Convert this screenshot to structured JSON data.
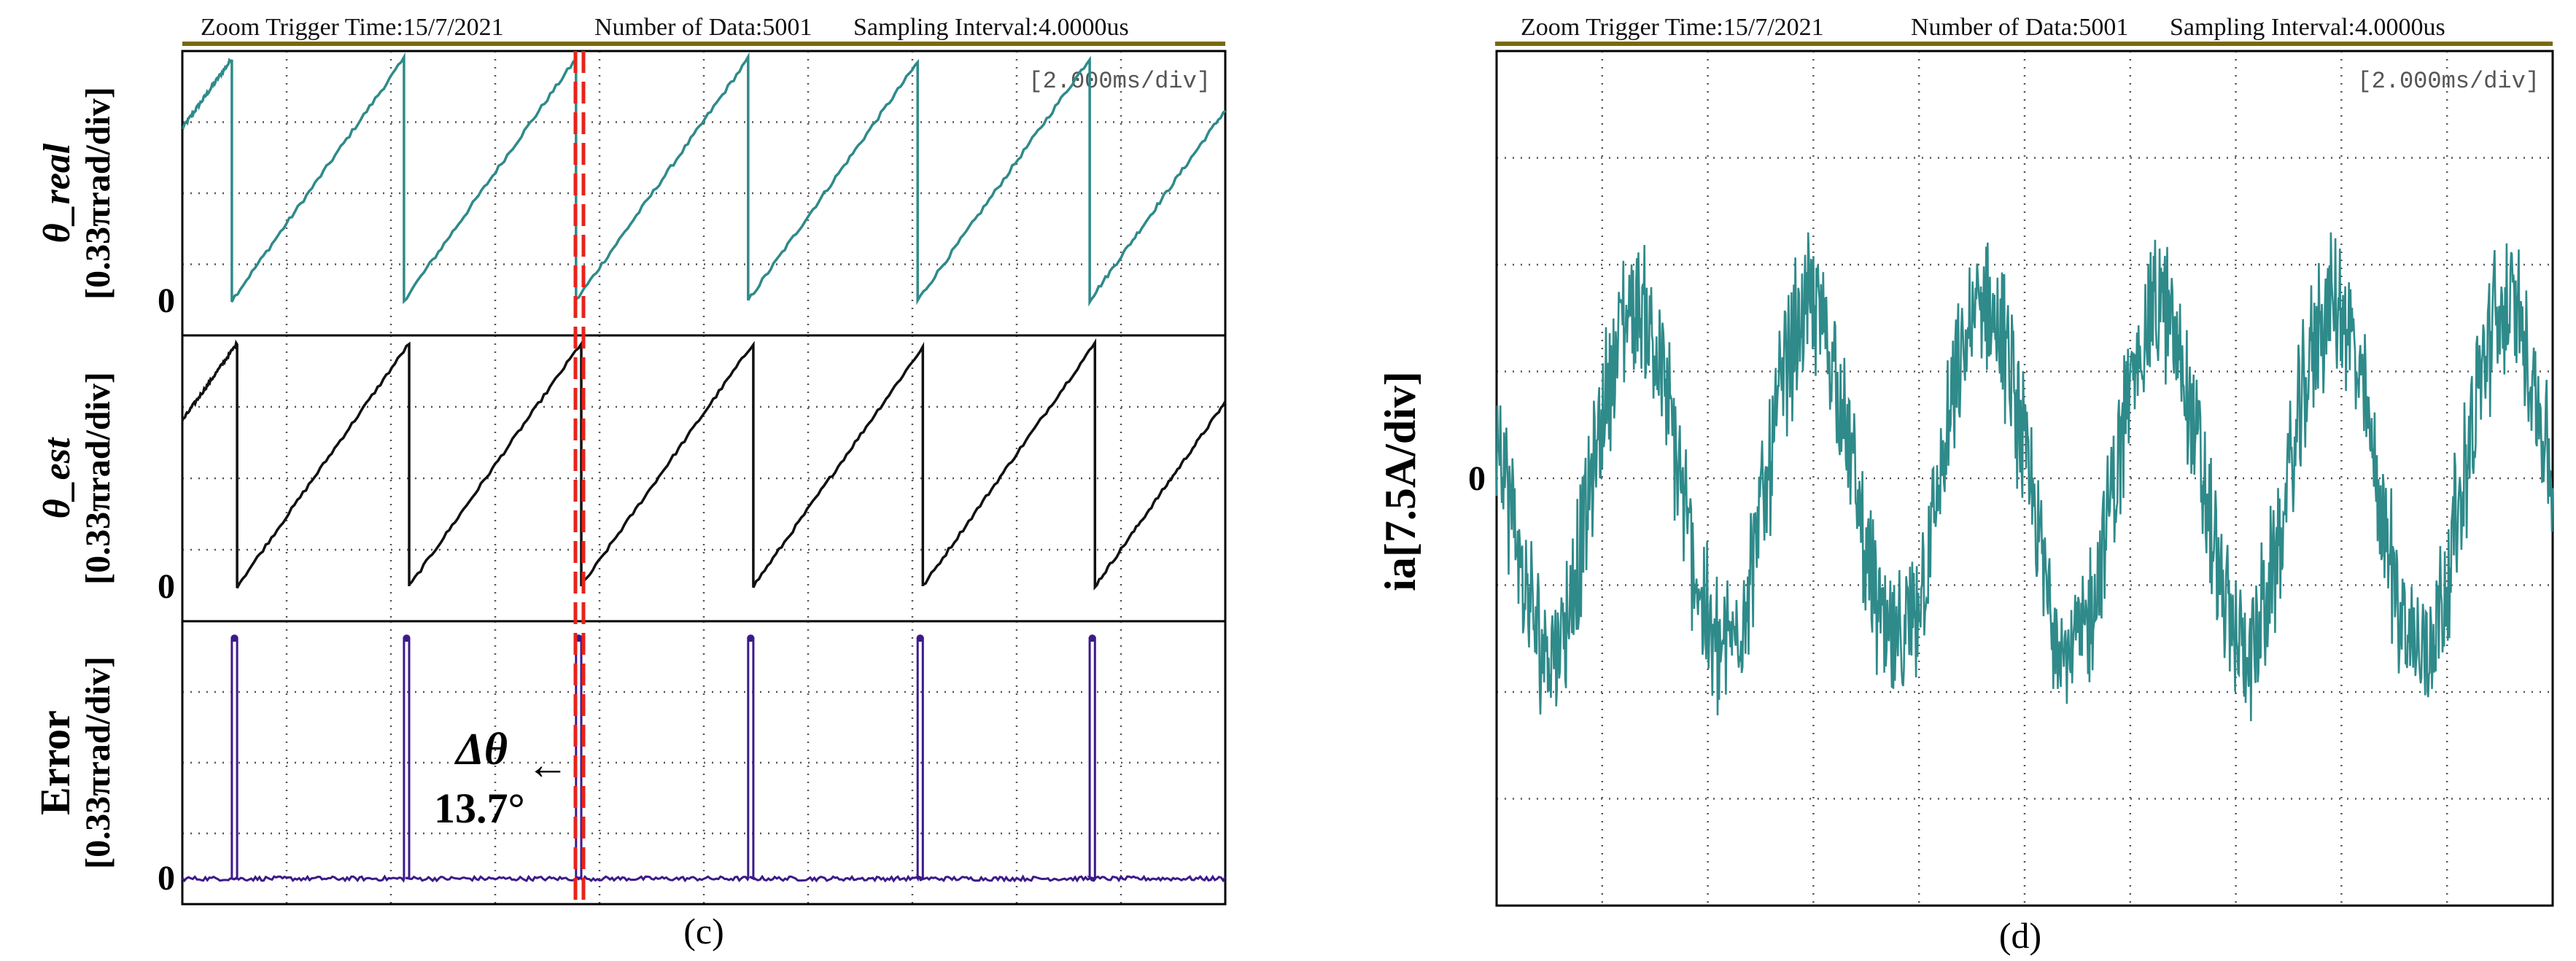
{
  "colors": {
    "header_rule": "#7a6a00",
    "grid": "#555555",
    "frame": "#000000",
    "teal": "#2f8a8a",
    "black": "#111111",
    "purple": "#3c1a8a",
    "marker": "#e8221a"
  },
  "panel_c": {
    "caption": "(c)",
    "header": {
      "trigger": "Zoom Trigger Time:15/7/2021",
      "ndata": "Number of Data:5001",
      "interval": "Sampling Interval:4.0000us"
    },
    "timebase": "[2.000ms/div]",
    "annotation": {
      "delta_label": "Δθ",
      "value": "13.7°",
      "arrow": "←"
    },
    "traces": [
      {
        "ylabel_line1": "θ_real",
        "ylabel_line2": "[0.33πrad/div]",
        "zero": "0"
      },
      {
        "ylabel_line1": "θ_est",
        "ylabel_line2": "[0.33πrad/div]",
        "zero": "0"
      },
      {
        "ylabel_line1": "Error",
        "ylabel_line2": "[0.33πrad/div]",
        "zero": "0"
      }
    ]
  },
  "panel_d": {
    "caption": "(d)",
    "header": {
      "trigger": "Zoom Trigger Time:15/7/2021",
      "ndata": "Number of Data:5001",
      "interval": "Sampling Interval:4.0000us"
    },
    "timebase": "[2.000ms/div]",
    "ylabel": "ia[7.5A/div]",
    "zero": "0"
  },
  "chart_data": [
    {
      "type": "line",
      "panel": "c",
      "x_unit": "ms",
      "x_range": [
        0,
        20
      ],
      "series": [
        {
          "name": "θ_real",
          "y_unit": "div (0.33π rad/div)",
          "waveform": "sawtooth",
          "low": 0,
          "high": 3.4,
          "reset_times": [
            0.95,
            4.25,
            7.55,
            10.85,
            14.1,
            17.4
          ]
        },
        {
          "name": "θ_est",
          "y_unit": "div (0.33π rad/div)",
          "waveform": "sawtooth",
          "low": 0,
          "high": 3.4,
          "reset_times": [
            1.05,
            4.35,
            7.65,
            10.95,
            14.2,
            17.5
          ]
        },
        {
          "name": "Error",
          "y_unit": "div (0.33π rad/div)",
          "waveform": "pulses",
          "baseline": 0,
          "pulse_height": 3.4,
          "pulse_times": [
            0.95,
            4.25,
            7.55,
            10.85,
            14.1,
            17.4
          ],
          "pulse_width": 0.1,
          "annotated_delta_deg": 13.7
        }
      ]
    },
    {
      "type": "line",
      "panel": "d",
      "x_unit": "ms",
      "x_range": [
        0,
        20
      ],
      "y_unit": "A",
      "y_scale_per_div": 7.5,
      "series": [
        {
          "name": "ia",
          "waveform": "noisy sine",
          "period_ms": 3.3,
          "amplitude_div": 1.6
        }
      ]
    }
  ]
}
